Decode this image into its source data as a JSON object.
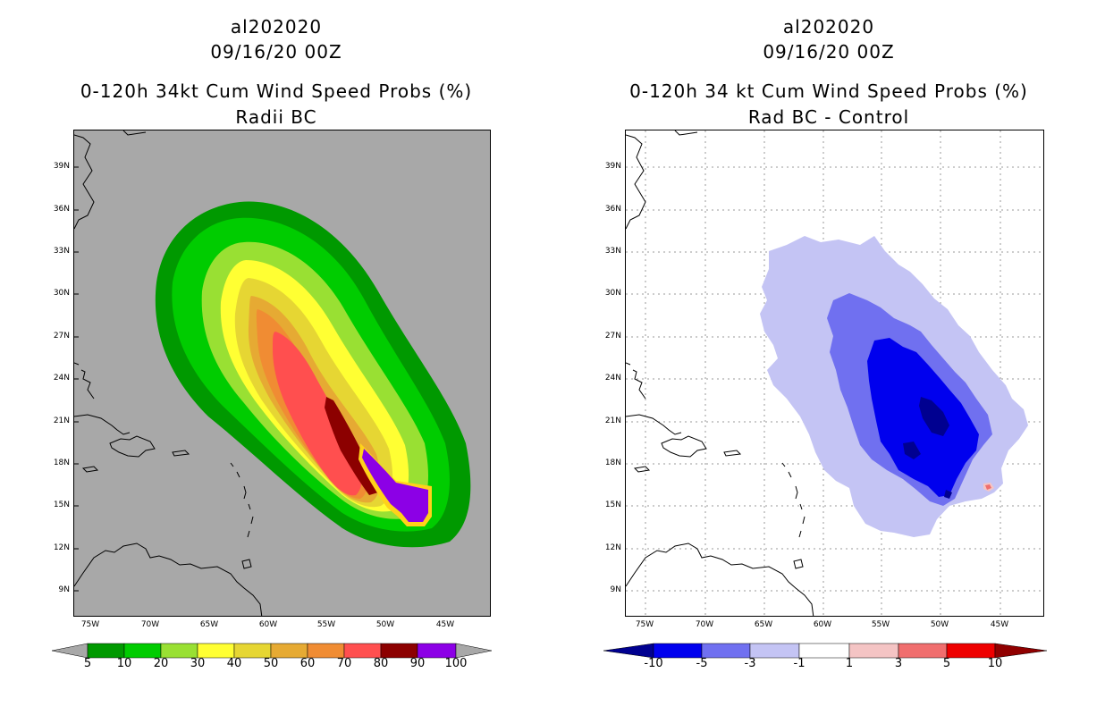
{
  "left_panel": {
    "storm_id": "al202020",
    "datetime": "09/16/20 00Z",
    "title": "0-120h 34kt Cum Wind Speed Probs (%)",
    "subtitle": "Radii BC",
    "background_color": "#a8a8a8",
    "colorbar": {
      "labels": [
        "5",
        "10",
        "20",
        "30",
        "40",
        "50",
        "60",
        "70",
        "80",
        "90",
        "100"
      ],
      "colors": [
        "#009900",
        "#00cc00",
        "#99e033",
        "#ffff33",
        "#e6d633",
        "#e6aa33",
        "#f08c33",
        "#ff4f4f",
        "#8c0000",
        "#8c00e6"
      ]
    }
  },
  "right_panel": {
    "storm_id": "al202020",
    "datetime": "09/16/20 00Z",
    "title": "0-120h 34 kt Cum Wind Speed Probs (%)",
    "subtitle": "Rad BC - Control",
    "background_color": "#ffffff",
    "colorbar": {
      "labels": [
        "-10",
        "-5",
        "-3",
        "-1",
        "1",
        "3",
        "5",
        "10"
      ],
      "colors": [
        "#000090",
        "#0000ee",
        "#7070f0",
        "#c4c4f4",
        "#ffffff",
        "#f4c4c4",
        "#f06e6e",
        "#ee0000",
        "#900000"
      ]
    }
  },
  "axes": {
    "lat_labels": [
      "39N",
      "36N",
      "33N",
      "30N",
      "27N",
      "24N",
      "21N",
      "18N",
      "15N",
      "12N",
      "9N"
    ],
    "lon_labels": [
      "75W",
      "70W",
      "65W",
      "60W",
      "55W",
      "50W",
      "45W"
    ]
  }
}
